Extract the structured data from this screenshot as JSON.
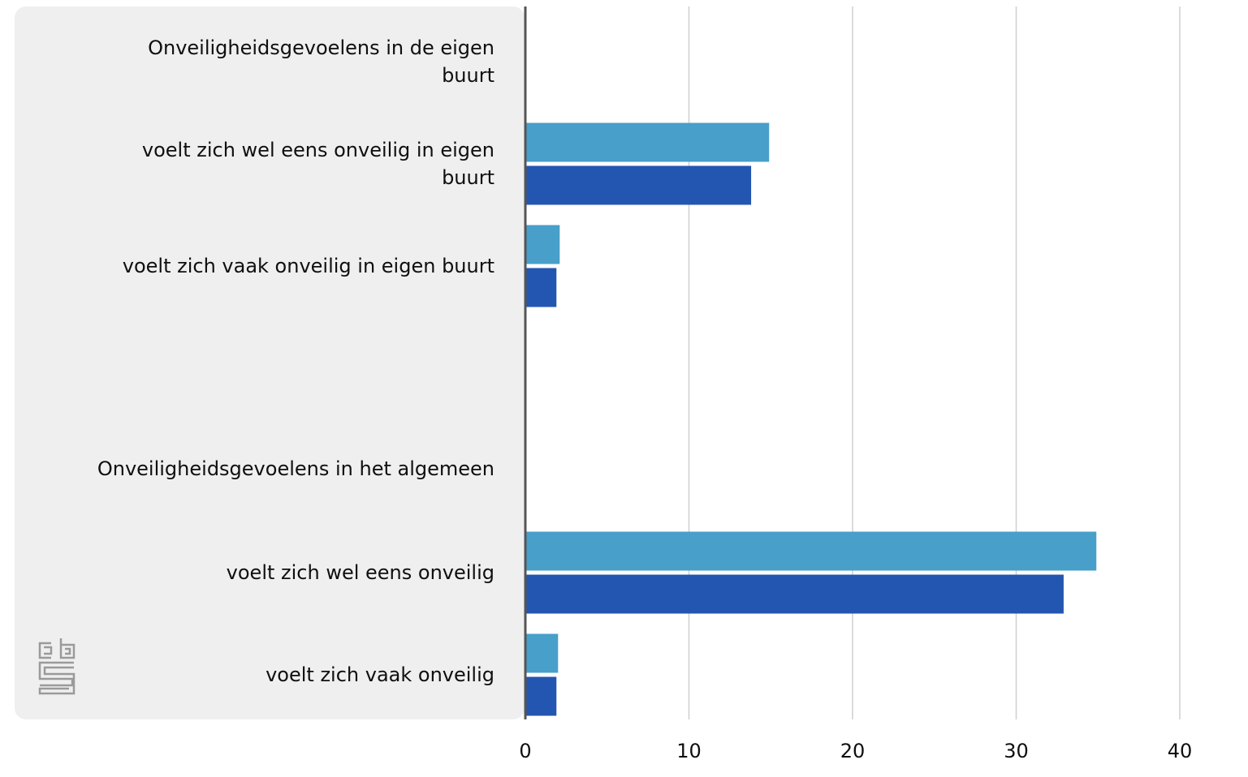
{
  "chart_data": {
    "type": "bar",
    "orientation": "horizontal",
    "categories": [
      {
        "label": "Onveiligheidsgevoelens in de eigen buurt",
        "lines": [
          "Onveiligheidsgevoelens in de eigen",
          "buurt"
        ],
        "heading": true
      },
      {
        "label": "voelt zich wel eens onveilig in eigen buurt",
        "lines": [
          "voelt zich wel eens onveilig in eigen",
          "buurt"
        ],
        "heading": false
      },
      {
        "label": "voelt zich vaak onveilig in eigen buurt",
        "lines": [
          "voelt zich vaak onveilig in eigen buurt"
        ],
        "heading": false
      },
      {
        "label": "",
        "lines": [],
        "heading": false
      },
      {
        "label": "Onveiligheidsgevoelens in het algemeen",
        "lines": [
          "Onveiligheidsgevoelens in het algemeen"
        ],
        "heading": true
      },
      {
        "label": "voelt zich wel eens onveilig",
        "lines": [
          "voelt zich wel eens onveilig"
        ],
        "heading": false
      },
      {
        "label": "voelt zich vaak onveilig",
        "lines": [
          "voelt zich vaak onveilig"
        ],
        "heading": false
      }
    ],
    "series": [
      {
        "color": "#479fca",
        "values": [
          null,
          14.9,
          2.1,
          null,
          null,
          34.9,
          2.0
        ]
      },
      {
        "color": "#2356b0",
        "values": [
          null,
          13.8,
          1.9,
          null,
          null,
          32.9,
          1.9
        ]
      }
    ],
    "xlim": [
      0,
      40
    ],
    "xticks": [
      0,
      10,
      20,
      30,
      40
    ],
    "grid": true,
    "legend": "none",
    "logo": "cbs-logo"
  }
}
